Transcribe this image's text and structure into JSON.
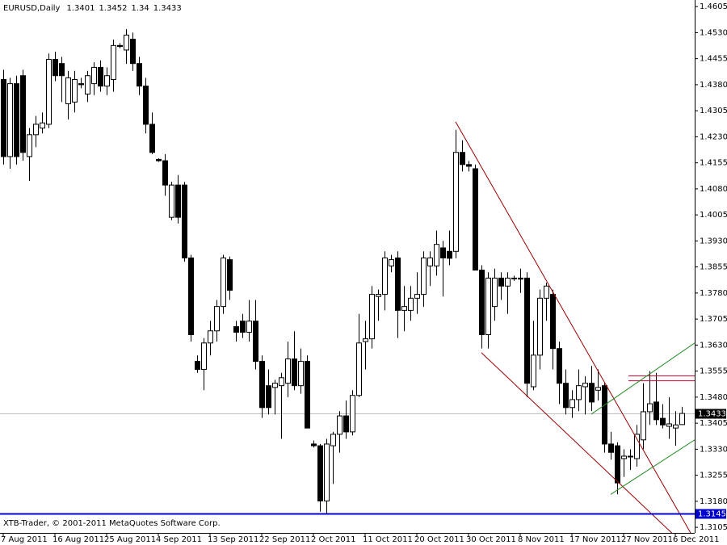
{
  "chart_data": {
    "type": "candlestick",
    "title": "EURUSD,Daily",
    "footer": "XTB-Trader, © 2001-2011 MetaQuotes Software Corp.",
    "color": "#000000",
    "ylim": [
      1.3089,
      1.4624
    ],
    "yticks": [
      1.4605,
      {
        "value": 1.453,
        "label": "1.4530"
      },
      1.4455,
      {
        "value": 1.438,
        "label": "1.4380"
      },
      1.4305,
      {
        "value": 1.423,
        "label": "1.4230"
      },
      1.4155,
      {
        "value": 1.408,
        "label": "1.4080"
      },
      1.4005,
      {
        "value": 1.393,
        "label": "1.3930"
      },
      1.3855,
      {
        "value": 1.378,
        "label": "1.3780"
      },
      1.3705,
      {
        "value": 1.363,
        "label": "1.3630"
      },
      1.3555,
      {
        "value": 1.348,
        "label": "1.3480"
      },
      1.3405,
      {
        "value": 1.333,
        "label": "1.3330"
      },
      1.3255,
      {
        "value": 1.318,
        "label": "1.3180"
      },
      1.3105
    ],
    "categories": [
      "7 Aug 2011",
      null,
      null,
      null,
      null,
      null,
      null,
      null,
      "16 Aug 2011",
      null,
      null,
      null,
      null,
      null,
      null,
      null,
      "25 Aug 2011",
      null,
      null,
      null,
      null,
      null,
      null,
      null,
      "4 Sep 2011",
      null,
      null,
      null,
      null,
      null,
      null,
      null,
      "13 Sep 2011",
      null,
      null,
      null,
      null,
      null,
      null,
      null,
      "22 Sep 2011",
      null,
      null,
      null,
      null,
      null,
      null,
      null,
      "2 Oct 2011",
      null,
      null,
      null,
      null,
      null,
      null,
      null,
      "11 Oct 2011",
      null,
      null,
      null,
      null,
      null,
      null,
      null,
      "20 Oct 2011",
      null,
      null,
      null,
      null,
      null,
      null,
      null,
      "30 Oct 2011",
      null,
      null,
      null,
      null,
      null,
      null,
      null,
      "8 Nov 2011",
      null,
      null,
      null,
      null,
      null,
      null,
      null,
      "17 Nov 2011",
      null,
      null,
      null,
      null,
      null,
      null,
      null,
      "27 Nov 2011",
      null,
      null,
      null,
      null,
      null,
      null,
      null,
      "6 Dec 2011",
      null
    ],
    "open": [
      1.4395,
      1.4173,
      1.4383,
      1.4406,
      1.4173,
      1.4236,
      1.4255,
      1.4266,
      1.4453,
      1.4441,
      1.4325,
      1.433,
      1.4383,
      1.4353,
      1.4383,
      1.443,
      1.4376,
      1.4395,
      1.4493,
      1.448,
      1.4511,
      1.4441,
      1.4376,
      1.4266,
      1.4165,
      1.4161,
      1.3998,
      1.4091,
      1.4091,
      1.3881,
      1.3583,
      1.356,
      1.3636,
      1.3671,
      1.3741,
      1.3876,
      1.3683,
      1.3699,
      1.3667,
      1.3699,
      1.3583,
      1.3513,
      1.3508,
      1.3513,
      1.352,
      1.359,
      1.3513,
      1.3583,
      1.3345,
      1.334,
      1.3181,
      1.334,
      1.3373,
      1.3426,
      1.338,
      1.3485,
      1.364,
      1.3648,
      1.377,
      1.3776,
      1.3858,
      1.3881,
      1.373,
      1.373,
      1.3765,
      1.3776,
      1.3858,
      1.3858,
      1.391,
      1.39,
      1.39,
      1.4185,
      1.415,
      1.4138,
      1.3846,
      1.366,
      1.3741,
      1.3823,
      1.38,
      1.3823,
      1.3823,
      1.3823,
      1.351,
      1.3601,
      1.3765,
      1.3776,
      1.362,
      1.352,
      1.345,
      1.3473,
      1.351,
      1.352,
      1.35,
      1.3513,
      1.3345,
      1.334,
      1.3303,
      1.331,
      1.3303,
      1.3357,
      1.3438,
      1.3466,
      1.3419,
      1.3396,
      1.3391,
      1.3401
    ],
    "high": [
      1.4423,
      1.44,
      1.4406,
      1.4423,
      1.4255,
      1.429,
      1.43,
      1.447,
      1.4475,
      1.446,
      1.442,
      1.442,
      1.44,
      1.442,
      1.4445,
      1.445,
      1.443,
      1.451,
      1.45,
      1.454,
      1.453,
      1.446,
      1.44,
      1.43,
      1.4168,
      1.418,
      1.41,
      1.412,
      1.41,
      1.389,
      1.36,
      1.365,
      1.37,
      1.376,
      1.389,
      1.3885,
      1.37,
      1.372,
      1.376,
      1.376,
      1.36,
      1.356,
      1.353,
      1.355,
      1.364,
      1.367,
      1.362,
      1.36,
      1.3355,
      1.3345,
      1.336,
      1.338,
      1.344,
      1.347,
      1.35,
      1.372,
      1.37,
      1.38,
      1.379,
      1.39,
      1.389,
      1.39,
      1.38,
      1.38,
      1.384,
      1.39,
      1.39,
      1.396,
      1.393,
      1.396,
      1.425,
      1.422,
      1.416,
      1.415,
      1.386,
      1.384,
      1.385,
      1.384,
      1.384,
      1.383,
      1.385,
      1.384,
      1.37,
      1.379,
      1.381,
      1.379,
      1.364,
      1.356,
      1.35,
      1.356,
      1.354,
      1.357,
      1.356,
      1.352,
      1.338,
      1.335,
      1.333,
      1.333,
      1.34,
      1.352,
      1.3555,
      1.355,
      1.346,
      1.348,
      1.344,
      1.3452
    ],
    "low": [
      1.415,
      1.4138,
      1.415,
      1.4161,
      1.4103,
      1.42,
      1.424,
      1.4255,
      1.439,
      1.433,
      1.428,
      1.43,
      1.437,
      1.433,
      1.435,
      1.436,
      1.435,
      1.436,
      1.4485,
      1.444,
      1.442,
      1.435,
      1.424,
      1.418,
      1.4158,
      1.406,
      1.399,
      1.398,
      1.387,
      1.364,
      1.355,
      1.35,
      1.36,
      1.364,
      1.372,
      1.376,
      1.364,
      1.365,
      1.364,
      1.356,
      1.342,
      1.343,
      1.343,
      1.336,
      1.348,
      1.35,
      1.349,
      1.339,
      1.3335,
      1.315,
      1.3145,
      1.323,
      1.332,
      1.336,
      1.337,
      1.348,
      1.356,
      1.362,
      1.37,
      1.373,
      1.384,
      1.365,
      1.367,
      1.37,
      1.372,
      1.374,
      1.38,
      1.383,
      1.377,
      1.386,
      1.388,
      1.413,
      1.413,
      1.385,
      1.362,
      1.362,
      1.37,
      1.376,
      1.372,
      1.3815,
      1.378,
      1.348,
      1.35,
      1.356,
      1.37,
      1.356,
      1.346,
      1.343,
      1.342,
      1.344,
      1.343,
      1.344,
      1.347,
      1.332,
      1.33,
      1.32,
      1.325,
      1.327,
      1.328,
      1.333,
      1.34,
      1.34,
      1.339,
      1.336,
      1.334,
      1.34
    ],
    "close": [
      1.4173,
      1.4383,
      1.4173,
      1.4185,
      1.4236,
      1.4266,
      1.427,
      1.4453,
      1.4406,
      1.4406,
      1.44,
      1.4395,
      1.438,
      1.4406,
      1.443,
      1.4376,
      1.4406,
      1.4493,
      1.449,
      1.4523,
      1.4441,
      1.4376,
      1.4266,
      1.4185,
      1.4161,
      1.4091,
      1.4091,
      1.3998,
      1.3881,
      1.366,
      1.356,
      1.3636,
      1.3671,
      1.3741,
      1.3881,
      1.3788,
      1.3667,
      1.3667,
      1.3699,
      1.3583,
      1.345,
      1.345,
      1.352,
      1.3536,
      1.359,
      1.3513,
      1.3583,
      1.3391,
      1.334,
      1.3181,
      1.3345,
      1.3373,
      1.3426,
      1.338,
      1.3485,
      1.3636,
      1.3648,
      1.3776,
      1.3776,
      1.3881,
      1.3876,
      1.373,
      1.3741,
      1.3765,
      1.3776,
      1.3881,
      1.3881,
      1.392,
      1.3881,
      1.388,
      1.4185,
      1.415,
      1.4145,
      1.3846,
      1.366,
      1.3823,
      1.3823,
      1.38,
      1.3823,
      1.3823,
      1.382,
      1.352,
      1.3601,
      1.3765,
      1.38,
      1.362,
      1.352,
      1.345,
      1.3473,
      1.3513,
      1.352,
      1.3466,
      1.3508,
      1.3345,
      1.3321,
      1.3233,
      1.331,
      1.331,
      1.3373,
      1.3438,
      1.3461,
      1.3415,
      1.34,
      1.3403,
      1.34,
      1.3433
    ],
    "current_line_color": "#c0c0c0",
    "support_line": {
      "value": 1.3145,
      "color": "#0000cc"
    },
    "trendlines": [
      {
        "x": [
          70,
          106.4
        ],
        "y": [
          1.4273,
          1.3088
        ],
        "color": "#990000"
      },
      {
        "x": [
          74,
          103.5
        ],
        "y": [
          1.3608,
          1.3088
        ],
        "color": "#990000"
      },
      {
        "x": [
          96.75,
          107
        ],
        "y": [
          1.3541,
          1.3541
        ],
        "color": "#cc0033"
      },
      {
        "x": [
          96.75,
          107
        ],
        "y": [
          1.3527,
          1.3527
        ],
        "color": "#cc0033"
      },
      {
        "x": [
          91,
          107
        ],
        "y": [
          1.3431,
          1.3636
        ],
        "color": "#228b22"
      },
      {
        "x": [
          94,
          107
        ],
        "y": [
          1.32,
          1.3357
        ],
        "color": "#228b22"
      }
    ]
  }
}
